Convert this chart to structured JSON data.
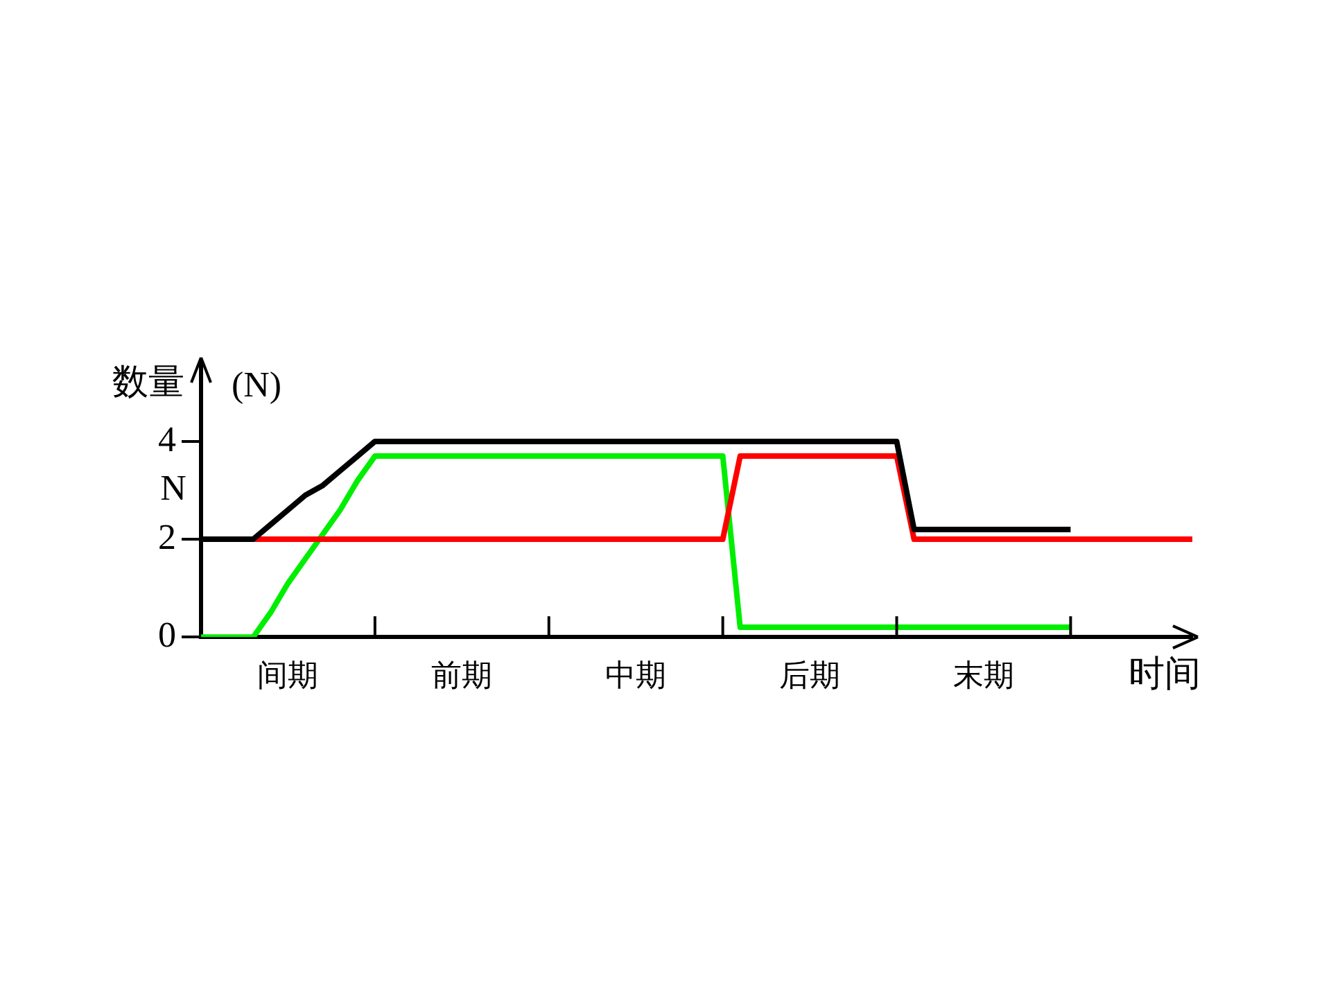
{
  "chart_data": {
    "type": "line",
    "ylabel": "数量",
    "xlabel": "时间",
    "annotations": [
      "(N)",
      "N"
    ],
    "categories": [
      null,
      null,
      null,
      null,
      null,
      "间期",
      null,
      null,
      null,
      null,
      null,
      null,
      null,
      null,
      null,
      "前期",
      null,
      null,
      null,
      null,
      null,
      null,
      null,
      null,
      null,
      "中期",
      null,
      null,
      null,
      null,
      null,
      null,
      null,
      null,
      null,
      "后期",
      null,
      null,
      null,
      null,
      null,
      null,
      null,
      null,
      null,
      "末期",
      null,
      null,
      null,
      null,
      null,
      null,
      null,
      null,
      null,
      null,
      null,
      null
    ],
    "ylim": [
      0,
      5.6
    ],
    "yticks": [
      0,
      2,
      4
    ],
    "marker": "none",
    "legend": false,
    "series": [
      {
        "color": "#000000",
        "values": [
          2,
          2,
          2,
          2,
          2.3,
          2.6,
          2.9,
          3.1,
          3.4,
          3.7,
          4,
          4,
          4,
          4,
          4,
          4,
          4,
          4,
          4,
          4,
          4,
          4,
          4,
          4,
          4,
          4,
          4,
          4,
          4,
          4,
          4,
          4,
          4,
          4,
          4,
          4,
          4,
          4,
          4,
          4,
          4,
          2.2,
          2.2,
          2.2,
          2.2,
          2.2,
          2.2,
          2.2,
          2.2,
          2.2,
          2.2,
          null,
          null,
          null,
          null,
          null,
          null,
          null
        ]
      },
      {
        "color": "#ff0000",
        "values": [
          null,
          null,
          null,
          2,
          2,
          2,
          2,
          2,
          2,
          2,
          2,
          2,
          2,
          2,
          2,
          2,
          2,
          2,
          2,
          2,
          2,
          2,
          2,
          2,
          2,
          2,
          2,
          2,
          2,
          2,
          2,
          3.7,
          3.7,
          3.7,
          3.7,
          3.7,
          3.7,
          3.7,
          3.7,
          3.7,
          3.7,
          2,
          2,
          2,
          2,
          2,
          2,
          2,
          2,
          2,
          2,
          2,
          2,
          2,
          2,
          2,
          2,
          2
        ]
      },
      {
        "color": "#00ee00",
        "values": [
          0,
          0,
          0,
          0,
          0.5,
          1.1,
          1.6,
          2.1,
          2.6,
          3.2,
          3.7,
          3.7,
          3.7,
          3.7,
          3.7,
          3.7,
          3.7,
          3.7,
          3.7,
          3.7,
          3.7,
          3.7,
          3.7,
          3.7,
          3.7,
          3.7,
          3.7,
          3.7,
          3.7,
          3.7,
          3.7,
          0.2,
          0.2,
          0.2,
          0.2,
          0.2,
          0.2,
          0.2,
          0.2,
          0.2,
          0.2,
          0.2,
          0.2,
          0.2,
          0.2,
          0.2,
          0.2,
          0.2,
          0.2,
          0.2,
          0.2,
          null,
          null,
          null,
          null,
          null,
          null,
          null
        ]
      }
    ]
  }
}
